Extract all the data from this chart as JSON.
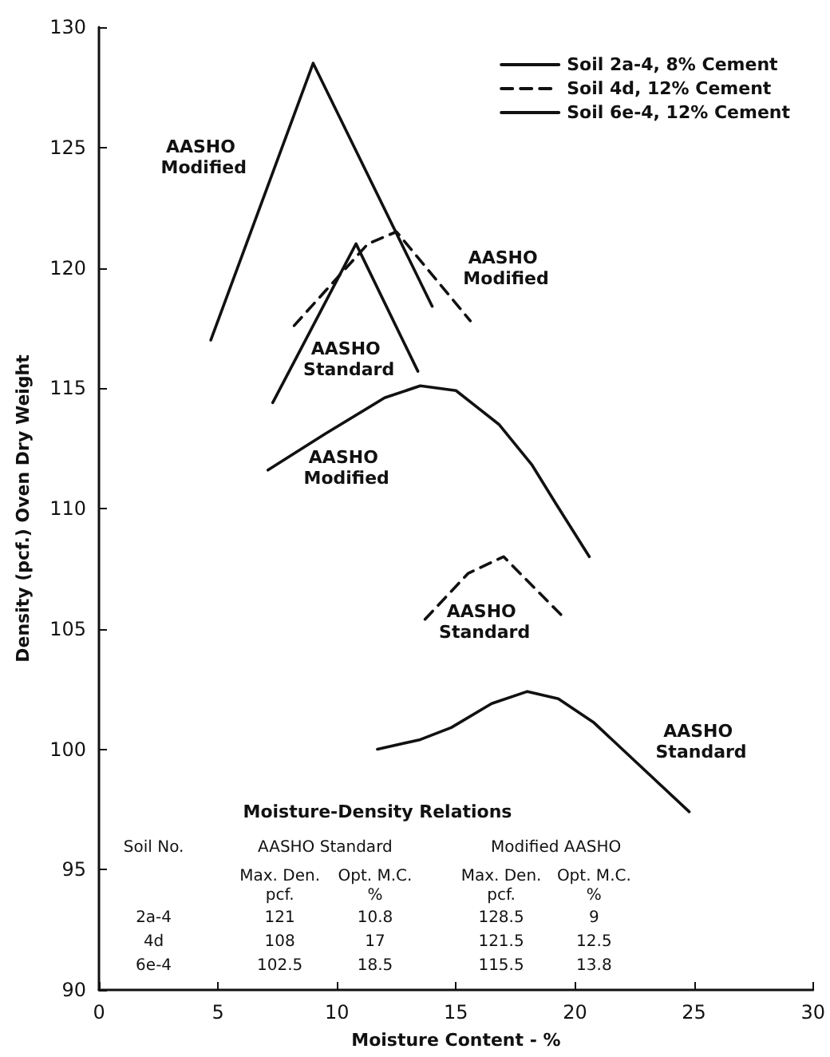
{
  "chart_data": {
    "type": "line",
    "xlabel": "Moisture Content - %",
    "ylabel": "Density (pcf.) Oven Dry Weight",
    "xlim": [
      0,
      30
    ],
    "xticks": [
      0,
      5,
      10,
      15,
      20,
      25,
      30
    ],
    "ylim": [
      90,
      130
    ],
    "yticks": [
      90,
      95,
      100,
      105,
      110,
      115,
      120,
      125,
      130
    ],
    "grid": false,
    "legend": "top right",
    "marker": "none",
    "series": [
      {
        "name": "Soil 2a-4, 8% Cement",
        "color": "#111111",
        "line_style": "solid",
        "x": [
          4.7,
          9,
          14
        ],
        "values": [
          117,
          128.5,
          118.4
        ]
      },
      {
        "color": "#111111",
        "line_style": "solid",
        "x": [
          7.3,
          10.8,
          13.4
        ],
        "values": [
          114.4,
          121,
          115.7
        ]
      },
      {
        "name": "Soil 4d, 12% Cement",
        "color": "#111111",
        "line_style": "dashed",
        "x": [
          8.2,
          11.3,
          12.5,
          15.6
        ],
        "values": [
          117.6,
          121,
          121.5,
          117.8
        ]
      },
      {
        "color": "#111111",
        "line_style": "dashed",
        "x": [
          13.7,
          15.5,
          17,
          19.5
        ],
        "values": [
          105.4,
          107.3,
          108,
          105.5
        ]
      },
      {
        "name": "Soil 6e-4, 12% Cement",
        "color": "#111111",
        "line_style": "solid",
        "x": [
          7.1,
          9.5,
          12,
          13.5,
          15,
          16.8,
          18.2,
          19.2,
          20.6
        ],
        "values": [
          111.6,
          113.1,
          114.6,
          115.1,
          114.9,
          113.5,
          111.8,
          110.2,
          108
        ]
      },
      {
        "color": "#111111",
        "line_style": "solid",
        "x": [
          11.7,
          13.5,
          14.8,
          16.5,
          18,
          19.3,
          20.8,
          24.8
        ],
        "values": [
          100,
          100.4,
          100.9,
          101.9,
          102.4,
          102.1,
          101.1,
          97.4
        ]
      }
    ],
    "annotations": [
      "AASHO Modified",
      "AASHO Standard",
      "AASHO Modified",
      "AASHO Standard",
      "AASHO Modified",
      "AASHO Standard",
      "Moisture-Density Relations",
      "Soil No.",
      "AASHO Standard",
      "Modified AASHO",
      "Max. Den.\npcf.",
      "Opt. M.C.\n%",
      "Max. Den.\npcf.",
      "Opt. M.C.\n%",
      "2a-4",
      "121",
      "10.8",
      "128.5",
      "9",
      "4d",
      "108",
      "17",
      "121.5",
      "12.5",
      "6e-4",
      "102.5",
      "18.5",
      "115.5",
      "13.8"
    ]
  }
}
